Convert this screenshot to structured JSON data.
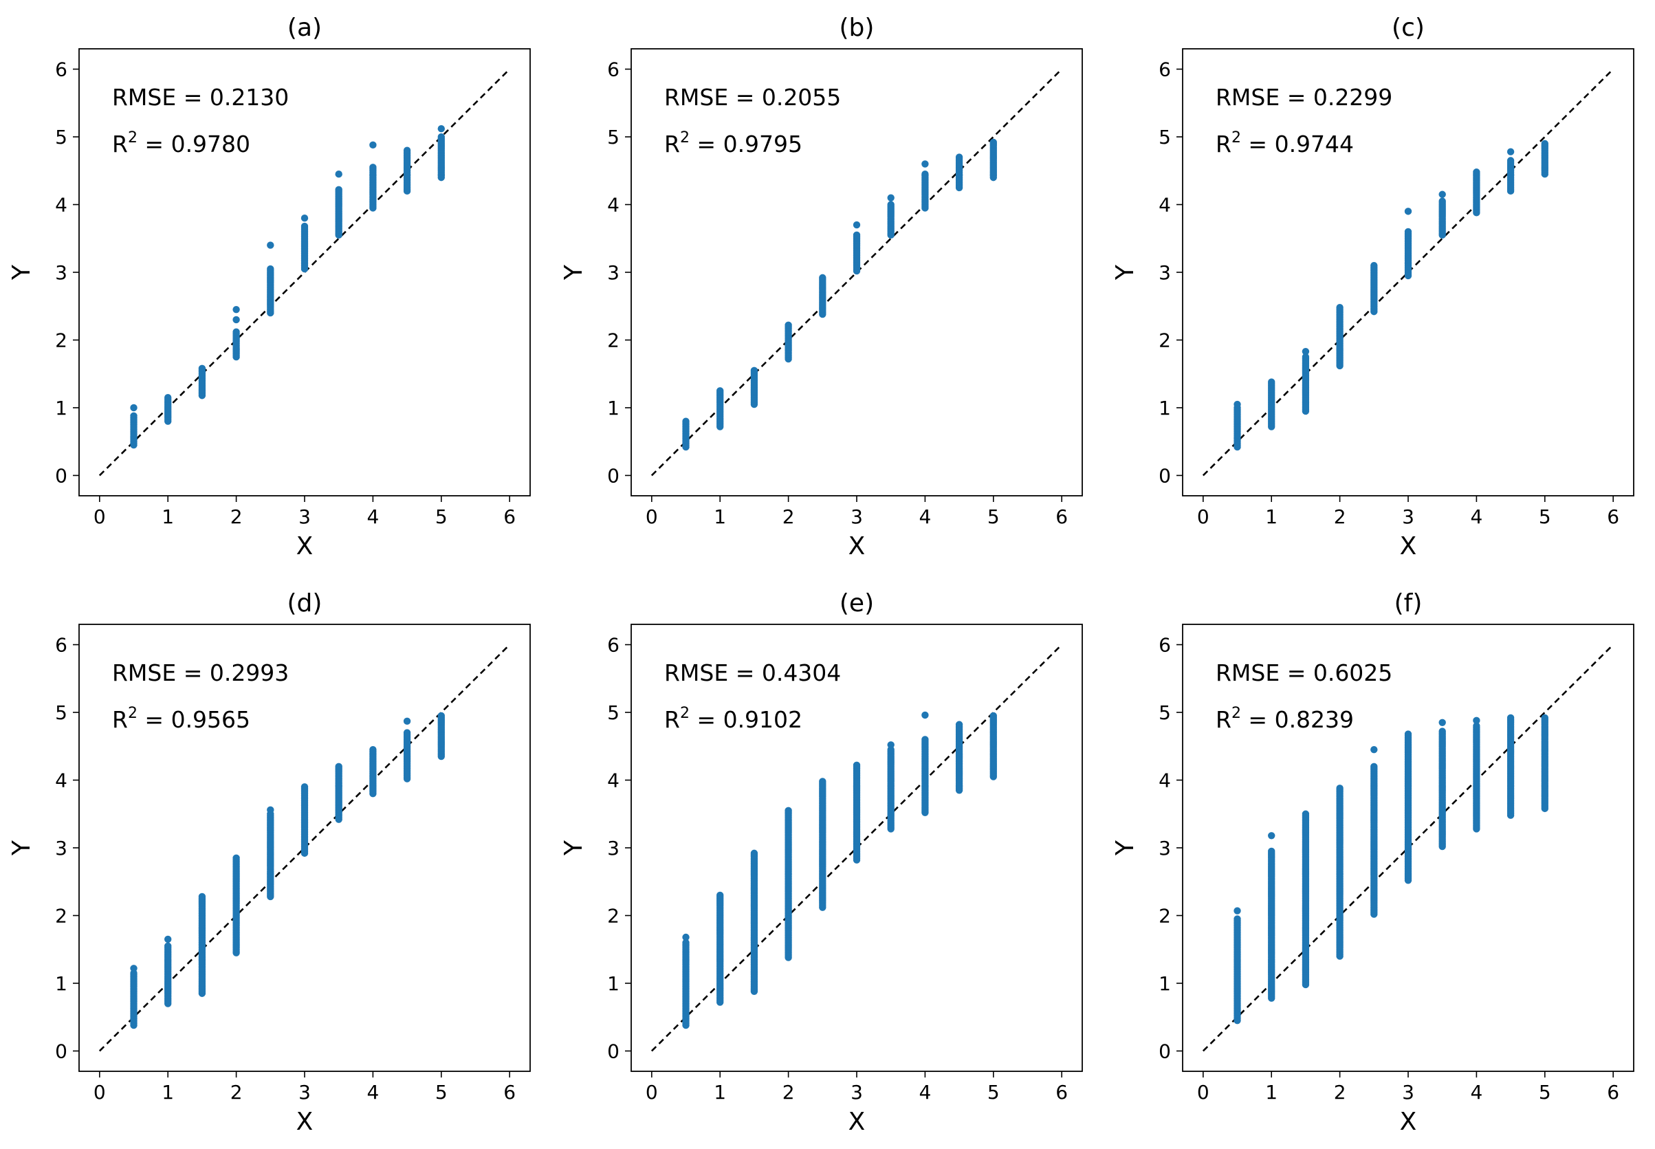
{
  "figure": {
    "tick_values": [
      0,
      1,
      2,
      3,
      4,
      5,
      6
    ]
  },
  "style": {
    "point_color": "#1f77b4",
    "line_color": "#000000",
    "axis_color": "#000000"
  },
  "chart_data": [
    {
      "type": "scatter",
      "title": "(a)",
      "xlabel": "X",
      "ylabel": "Y",
      "xlim": [
        -0.3,
        6.3
      ],
      "ylim": [
        -0.3,
        6.3
      ],
      "rmse_label": "RMSE = 0.2130",
      "r2_prefix": "R",
      "r2_sup": "2",
      "r2_value": " = 0.9780",
      "reference_line": {
        "from": [
          0,
          0
        ],
        "to": [
          6,
          6
        ],
        "style": "dashed"
      },
      "series": [
        {
          "x": 0.5,
          "y_min": 0.45,
          "y_max": 0.88,
          "outliers": [
            1.0
          ]
        },
        {
          "x": 1.0,
          "y_min": 0.8,
          "y_max": 1.15,
          "outliers": []
        },
        {
          "x": 1.5,
          "y_min": 1.18,
          "y_max": 1.58,
          "outliers": []
        },
        {
          "x": 2.0,
          "y_min": 1.75,
          "y_max": 2.12,
          "outliers": [
            2.3,
            2.45
          ]
        },
        {
          "x": 2.5,
          "y_min": 2.4,
          "y_max": 3.05,
          "outliers": [
            3.4
          ]
        },
        {
          "x": 3.0,
          "y_min": 3.05,
          "y_max": 3.68,
          "outliers": [
            3.8
          ]
        },
        {
          "x": 3.5,
          "y_min": 3.55,
          "y_max": 4.22,
          "outliers": [
            4.45
          ]
        },
        {
          "x": 4.0,
          "y_min": 3.95,
          "y_max": 4.55,
          "outliers": [
            4.88
          ]
        },
        {
          "x": 4.5,
          "y_min": 4.2,
          "y_max": 4.8,
          "outliers": []
        },
        {
          "x": 5.0,
          "y_min": 4.4,
          "y_max": 5.0,
          "outliers": [
            5.12
          ]
        }
      ]
    },
    {
      "type": "scatter",
      "title": "(b)",
      "xlabel": "X",
      "ylabel": "Y",
      "xlim": [
        -0.3,
        6.3
      ],
      "ylim": [
        -0.3,
        6.3
      ],
      "rmse_label": "RMSE = 0.2055",
      "r2_prefix": "R",
      "r2_sup": "2",
      "r2_value": " = 0.9795",
      "reference_line": {
        "from": [
          0,
          0
        ],
        "to": [
          6,
          6
        ],
        "style": "dashed"
      },
      "series": [
        {
          "x": 0.5,
          "y_min": 0.42,
          "y_max": 0.8,
          "outliers": []
        },
        {
          "x": 1.0,
          "y_min": 0.72,
          "y_max": 1.25,
          "outliers": []
        },
        {
          "x": 1.5,
          "y_min": 1.05,
          "y_max": 1.55,
          "outliers": []
        },
        {
          "x": 2.0,
          "y_min": 1.72,
          "y_max": 2.22,
          "outliers": []
        },
        {
          "x": 2.5,
          "y_min": 2.38,
          "y_max": 2.92,
          "outliers": []
        },
        {
          "x": 3.0,
          "y_min": 3.02,
          "y_max": 3.55,
          "outliers": [
            3.7
          ]
        },
        {
          "x": 3.5,
          "y_min": 3.55,
          "y_max": 4.0,
          "outliers": [
            4.1
          ]
        },
        {
          "x": 4.0,
          "y_min": 3.95,
          "y_max": 4.45,
          "outliers": [
            4.6
          ]
        },
        {
          "x": 4.5,
          "y_min": 4.25,
          "y_max": 4.7,
          "outliers": []
        },
        {
          "x": 5.0,
          "y_min": 4.4,
          "y_max": 4.92,
          "outliers": []
        }
      ]
    },
    {
      "type": "scatter",
      "title": "(c)",
      "xlabel": "X",
      "ylabel": "Y",
      "xlim": [
        -0.3,
        6.3
      ],
      "ylim": [
        -0.3,
        6.3
      ],
      "rmse_label": "RMSE = 0.2299",
      "r2_prefix": "R",
      "r2_sup": "2",
      "r2_value": " = 0.9744",
      "reference_line": {
        "from": [
          0,
          0
        ],
        "to": [
          6,
          6
        ],
        "style": "dashed"
      },
      "series": [
        {
          "x": 0.5,
          "y_min": 0.42,
          "y_max": 1.0,
          "outliers": [
            1.05
          ]
        },
        {
          "x": 1.0,
          "y_min": 0.72,
          "y_max": 1.38,
          "outliers": []
        },
        {
          "x": 1.5,
          "y_min": 0.95,
          "y_max": 1.75,
          "outliers": [
            1.83
          ]
        },
        {
          "x": 2.0,
          "y_min": 1.62,
          "y_max": 2.48,
          "outliers": []
        },
        {
          "x": 2.5,
          "y_min": 2.42,
          "y_max": 3.1,
          "outliers": []
        },
        {
          "x": 3.0,
          "y_min": 2.95,
          "y_max": 3.6,
          "outliers": [
            3.9
          ]
        },
        {
          "x": 3.5,
          "y_min": 3.55,
          "y_max": 4.05,
          "outliers": [
            4.15
          ]
        },
        {
          "x": 4.0,
          "y_min": 3.88,
          "y_max": 4.48,
          "outliers": []
        },
        {
          "x": 4.5,
          "y_min": 4.2,
          "y_max": 4.65,
          "outliers": [
            4.78
          ]
        },
        {
          "x": 5.0,
          "y_min": 4.45,
          "y_max": 4.9,
          "outliers": []
        }
      ]
    },
    {
      "type": "scatter",
      "title": "(d)",
      "xlabel": "X",
      "ylabel": "Y",
      "xlim": [
        -0.3,
        6.3
      ],
      "ylim": [
        -0.3,
        6.3
      ],
      "rmse_label": "RMSE = 0.2993",
      "r2_prefix": "R",
      "r2_sup": "2",
      "r2_value": " = 0.9565",
      "reference_line": {
        "from": [
          0,
          0
        ],
        "to": [
          6,
          6
        ],
        "style": "dashed"
      },
      "series": [
        {
          "x": 0.5,
          "y_min": 0.38,
          "y_max": 1.15,
          "outliers": [
            1.22
          ]
        },
        {
          "x": 1.0,
          "y_min": 0.7,
          "y_max": 1.55,
          "outliers": [
            1.65
          ]
        },
        {
          "x": 1.5,
          "y_min": 0.85,
          "y_max": 2.28,
          "outliers": []
        },
        {
          "x": 2.0,
          "y_min": 1.45,
          "y_max": 2.85,
          "outliers": []
        },
        {
          "x": 2.5,
          "y_min": 2.28,
          "y_max": 3.5,
          "outliers": [
            3.56
          ]
        },
        {
          "x": 3.0,
          "y_min": 2.92,
          "y_max": 3.9,
          "outliers": []
        },
        {
          "x": 3.5,
          "y_min": 3.42,
          "y_max": 4.2,
          "outliers": []
        },
        {
          "x": 4.0,
          "y_min": 3.8,
          "y_max": 4.45,
          "outliers": []
        },
        {
          "x": 4.5,
          "y_min": 4.02,
          "y_max": 4.7,
          "outliers": [
            4.87
          ]
        },
        {
          "x": 5.0,
          "y_min": 4.35,
          "y_max": 4.95,
          "outliers": []
        }
      ]
    },
    {
      "type": "scatter",
      "title": "(e)",
      "xlabel": "X",
      "ylabel": "Y",
      "xlim": [
        -0.3,
        6.3
      ],
      "ylim": [
        -0.3,
        6.3
      ],
      "rmse_label": "RMSE = 0.4304",
      "r2_prefix": "R",
      "r2_sup": "2",
      "r2_value": " = 0.9102",
      "reference_line": {
        "from": [
          0,
          0
        ],
        "to": [
          6,
          6
        ],
        "style": "dashed"
      },
      "series": [
        {
          "x": 0.5,
          "y_min": 0.38,
          "y_max": 1.6,
          "outliers": [
            1.68
          ]
        },
        {
          "x": 1.0,
          "y_min": 0.72,
          "y_max": 2.3,
          "outliers": []
        },
        {
          "x": 1.5,
          "y_min": 0.88,
          "y_max": 2.92,
          "outliers": []
        },
        {
          "x": 2.0,
          "y_min": 1.38,
          "y_max": 3.55,
          "outliers": []
        },
        {
          "x": 2.5,
          "y_min": 2.12,
          "y_max": 3.98,
          "outliers": []
        },
        {
          "x": 3.0,
          "y_min": 2.82,
          "y_max": 4.22,
          "outliers": []
        },
        {
          "x": 3.5,
          "y_min": 3.28,
          "y_max": 4.45,
          "outliers": [
            4.52
          ]
        },
        {
          "x": 4.0,
          "y_min": 3.52,
          "y_max": 4.6,
          "outliers": [
            4.96
          ]
        },
        {
          "x": 4.5,
          "y_min": 3.85,
          "y_max": 4.82,
          "outliers": []
        },
        {
          "x": 5.0,
          "y_min": 4.05,
          "y_max": 4.95,
          "outliers": []
        }
      ]
    },
    {
      "type": "scatter",
      "title": "(f)",
      "xlabel": "X",
      "ylabel": "Y",
      "xlim": [
        -0.3,
        6.3
      ],
      "ylim": [
        -0.3,
        6.3
      ],
      "rmse_label": "RMSE = 0.6025",
      "r2_prefix": "R",
      "r2_sup": "2",
      "r2_value": " = 0.8239",
      "reference_line": {
        "from": [
          0,
          0
        ],
        "to": [
          6,
          6
        ],
        "style": "dashed"
      },
      "series": [
        {
          "x": 0.5,
          "y_min": 0.45,
          "y_max": 1.95,
          "outliers": [
            2.07
          ]
        },
        {
          "x": 1.0,
          "y_min": 0.78,
          "y_max": 2.95,
          "outliers": [
            3.18
          ]
        },
        {
          "x": 1.5,
          "y_min": 0.98,
          "y_max": 3.5,
          "outliers": []
        },
        {
          "x": 2.0,
          "y_min": 1.4,
          "y_max": 3.88,
          "outliers": []
        },
        {
          "x": 2.5,
          "y_min": 2.02,
          "y_max": 4.2,
          "outliers": [
            4.45
          ]
        },
        {
          "x": 3.0,
          "y_min": 2.52,
          "y_max": 4.68,
          "outliers": []
        },
        {
          "x": 3.5,
          "y_min": 3.02,
          "y_max": 4.72,
          "outliers": [
            4.85
          ]
        },
        {
          "x": 4.0,
          "y_min": 3.28,
          "y_max": 4.8,
          "outliers": [
            4.88
          ]
        },
        {
          "x": 4.5,
          "y_min": 3.48,
          "y_max": 4.92,
          "outliers": []
        },
        {
          "x": 5.0,
          "y_min": 3.58,
          "y_max": 4.92,
          "outliers": []
        }
      ]
    }
  ]
}
